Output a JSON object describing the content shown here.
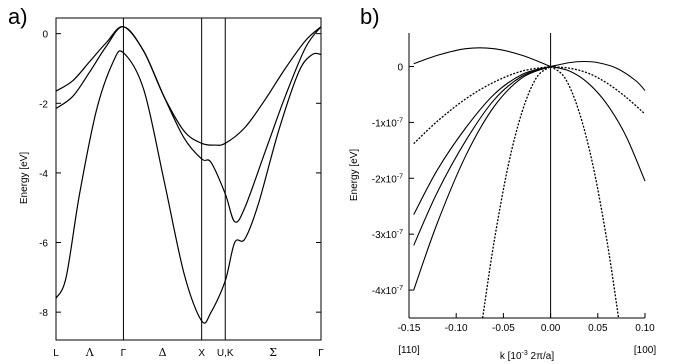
{
  "figure": {
    "panel_a_label": "a)",
    "panel_b_label": "b)"
  },
  "chart_data": [
    {
      "type": "line",
      "panel": "a)",
      "ylabel": "Energy [eV]",
      "xlabel": "",
      "ylim": [
        -8.8,
        0.45
      ],
      "y_ticks": [
        0,
        -2,
        -4,
        -6,
        -8
      ],
      "x_ticks": [
        {
          "label": "L",
          "x": 0.0
        },
        {
          "label": "Λ",
          "x": 0.5
        },
        {
          "label": "Γ",
          "x": 1.0
        },
        {
          "label": "Δ",
          "x": 1.58
        },
        {
          "label": "X",
          "x": 2.16
        },
        {
          "label": "U,K",
          "x": 2.51
        },
        {
          "label": "Σ",
          "x": 3.22
        },
        {
          "label": "Γ",
          "x": 3.93
        }
      ],
      "vertical_lines": [
        1.0,
        2.16,
        2.51
      ],
      "grid": false,
      "series": [
        {
          "x": [
            0,
            0.25,
            0.5,
            0.75,
            1.0,
            1.3,
            1.6,
            1.9,
            2.16,
            2.35,
            2.51,
            2.8,
            3.1,
            3.4,
            3.7,
            3.93
          ],
          "y": [
            -1.65,
            -1.35,
            -0.8,
            -0.25,
            0.2,
            -0.5,
            -1.8,
            -2.8,
            -3.15,
            -3.2,
            -3.15,
            -2.7,
            -1.9,
            -1.0,
            -0.2,
            0.2
          ]
        },
        {
          "x": [
            0,
            0.25,
            0.5,
            0.75,
            1.0,
            1.3,
            1.6,
            1.9,
            2.16,
            2.3,
            2.51,
            2.65,
            2.8,
            3.1,
            3.4,
            3.7,
            3.93
          ],
          "y": [
            -2.15,
            -1.8,
            -1.1,
            -0.35,
            0.2,
            -0.5,
            -1.8,
            -3.0,
            -3.6,
            -3.7,
            -4.6,
            -5.4,
            -5.0,
            -3.4,
            -1.8,
            -0.4,
            0.2
          ]
        },
        {
          "x": [
            0,
            0.15,
            0.35,
            0.6,
            0.85,
            1.0,
            1.3,
            1.6,
            1.9,
            2.16,
            2.3,
            2.51,
            2.65,
            2.8,
            3.0,
            3.3,
            3.6,
            3.8,
            3.93
          ],
          "y": [
            -7.6,
            -7.0,
            -4.6,
            -2.2,
            -0.8,
            -0.55,
            -1.6,
            -4.2,
            -6.9,
            -8.25,
            -8.0,
            -7.1,
            -6.0,
            -5.9,
            -4.9,
            -2.8,
            -1.1,
            -0.6,
            -0.6
          ]
        }
      ]
    },
    {
      "type": "line",
      "panel": "b)",
      "ylabel": "Energy [eV]",
      "xlabel": "k [10-3 2π/a]",
      "xlim": [
        -0.15,
        0.1
      ],
      "ylim": [
        -4.5e-07,
        6e-08
      ],
      "x_ticks": [
        -0.15,
        -0.1,
        -0.05,
        0.0,
        0.05,
        0.1
      ],
      "x_tick_labels": [
        "-0.15",
        "-0.10",
        "-0.05",
        "0.00",
        "0.05",
        "0.10"
      ],
      "y_ticks": [
        0,
        -1e-07,
        -2e-07,
        -3e-07,
        -4e-07
      ],
      "direction_labels": [
        "[110]",
        "[100]"
      ],
      "vertical_lines": [
        0.0
      ],
      "grid": false,
      "series": [
        {
          "style": "solid",
          "x": [
            -0.145,
            -0.12,
            -0.09,
            -0.06,
            -0.03,
            0.0
          ],
          "y": [
            5e-09,
            2e-08,
            3.2e-08,
            3.2e-08,
            2e-08,
            0.0
          ]
        },
        {
          "style": "solid",
          "x": [
            0.0,
            0.02,
            0.035,
            0.05,
            0.07,
            0.09,
            0.1
          ],
          "y": [
            0.0,
            7e-09,
            9e-09,
            7e-09,
            -3e-09,
            -2.5e-08,
            -4.3e-08
          ]
        },
        {
          "style": "dotted",
          "x": [
            0.0,
            0.02,
            0.04,
            0.06,
            0.08,
            0.1
          ],
          "y": [
            0.0,
            -3e-09,
            -1.2e-08,
            -3e-08,
            -5.5e-08,
            -8.5e-08
          ]
        },
        {
          "style": "solid",
          "x": [
            0.0,
            0.02,
            0.04,
            0.06,
            0.08,
            0.1
          ],
          "y": [
            0.0,
            -8e-09,
            -3e-08,
            -6.8e-08,
            -1.25e-07,
            -2.05e-07
          ]
        },
        {
          "style": "dotted",
          "x": [
            -0.145,
            -0.12,
            -0.09,
            -0.06,
            -0.03,
            0.0
          ],
          "y": [
            -1.38e-07,
            -9.8e-08,
            -5.8e-08,
            -2.8e-08,
            -8e-09,
            0.0
          ]
        },
        {
          "style": "solid",
          "x": [
            -0.145,
            -0.12,
            -0.09,
            -0.06,
            -0.03,
            0.0
          ],
          "y": [
            -2.65e-07,
            -1.85e-07,
            -1.1e-07,
            -5e-08,
            -1.4e-08,
            0.0
          ]
        },
        {
          "style": "solid",
          "x": [
            -0.145,
            -0.12,
            -0.09,
            -0.06,
            -0.03,
            0.0
          ],
          "y": [
            -3.2e-07,
            -2.25e-07,
            -1.33e-07,
            -6e-08,
            -1.7e-08,
            0.0
          ]
        },
        {
          "style": "solid",
          "x": [
            -0.145,
            -0.12,
            -0.09,
            -0.06,
            -0.03,
            0.0
          ],
          "y": [
            -4e-07,
            -2.8e-07,
            -1.6e-07,
            -7.2e-08,
            -2e-08,
            0.0
          ]
        },
        {
          "style": "dotted",
          "x": [
            -0.072,
            -0.06,
            -0.045,
            -0.03,
            -0.015,
            0.0
          ],
          "y": [
            -4.5e-07,
            -3.15e-07,
            -1.78e-07,
            -8e-08,
            -2e-08,
            0.0
          ]
        },
        {
          "style": "dotted",
          "x": [
            0.0,
            0.015,
            0.03,
            0.045,
            0.06,
            0.072
          ],
          "y": [
            0.0,
            -2e-08,
            -8e-08,
            -1.78e-07,
            -3.15e-07,
            -4.5e-07
          ]
        }
      ]
    }
  ]
}
